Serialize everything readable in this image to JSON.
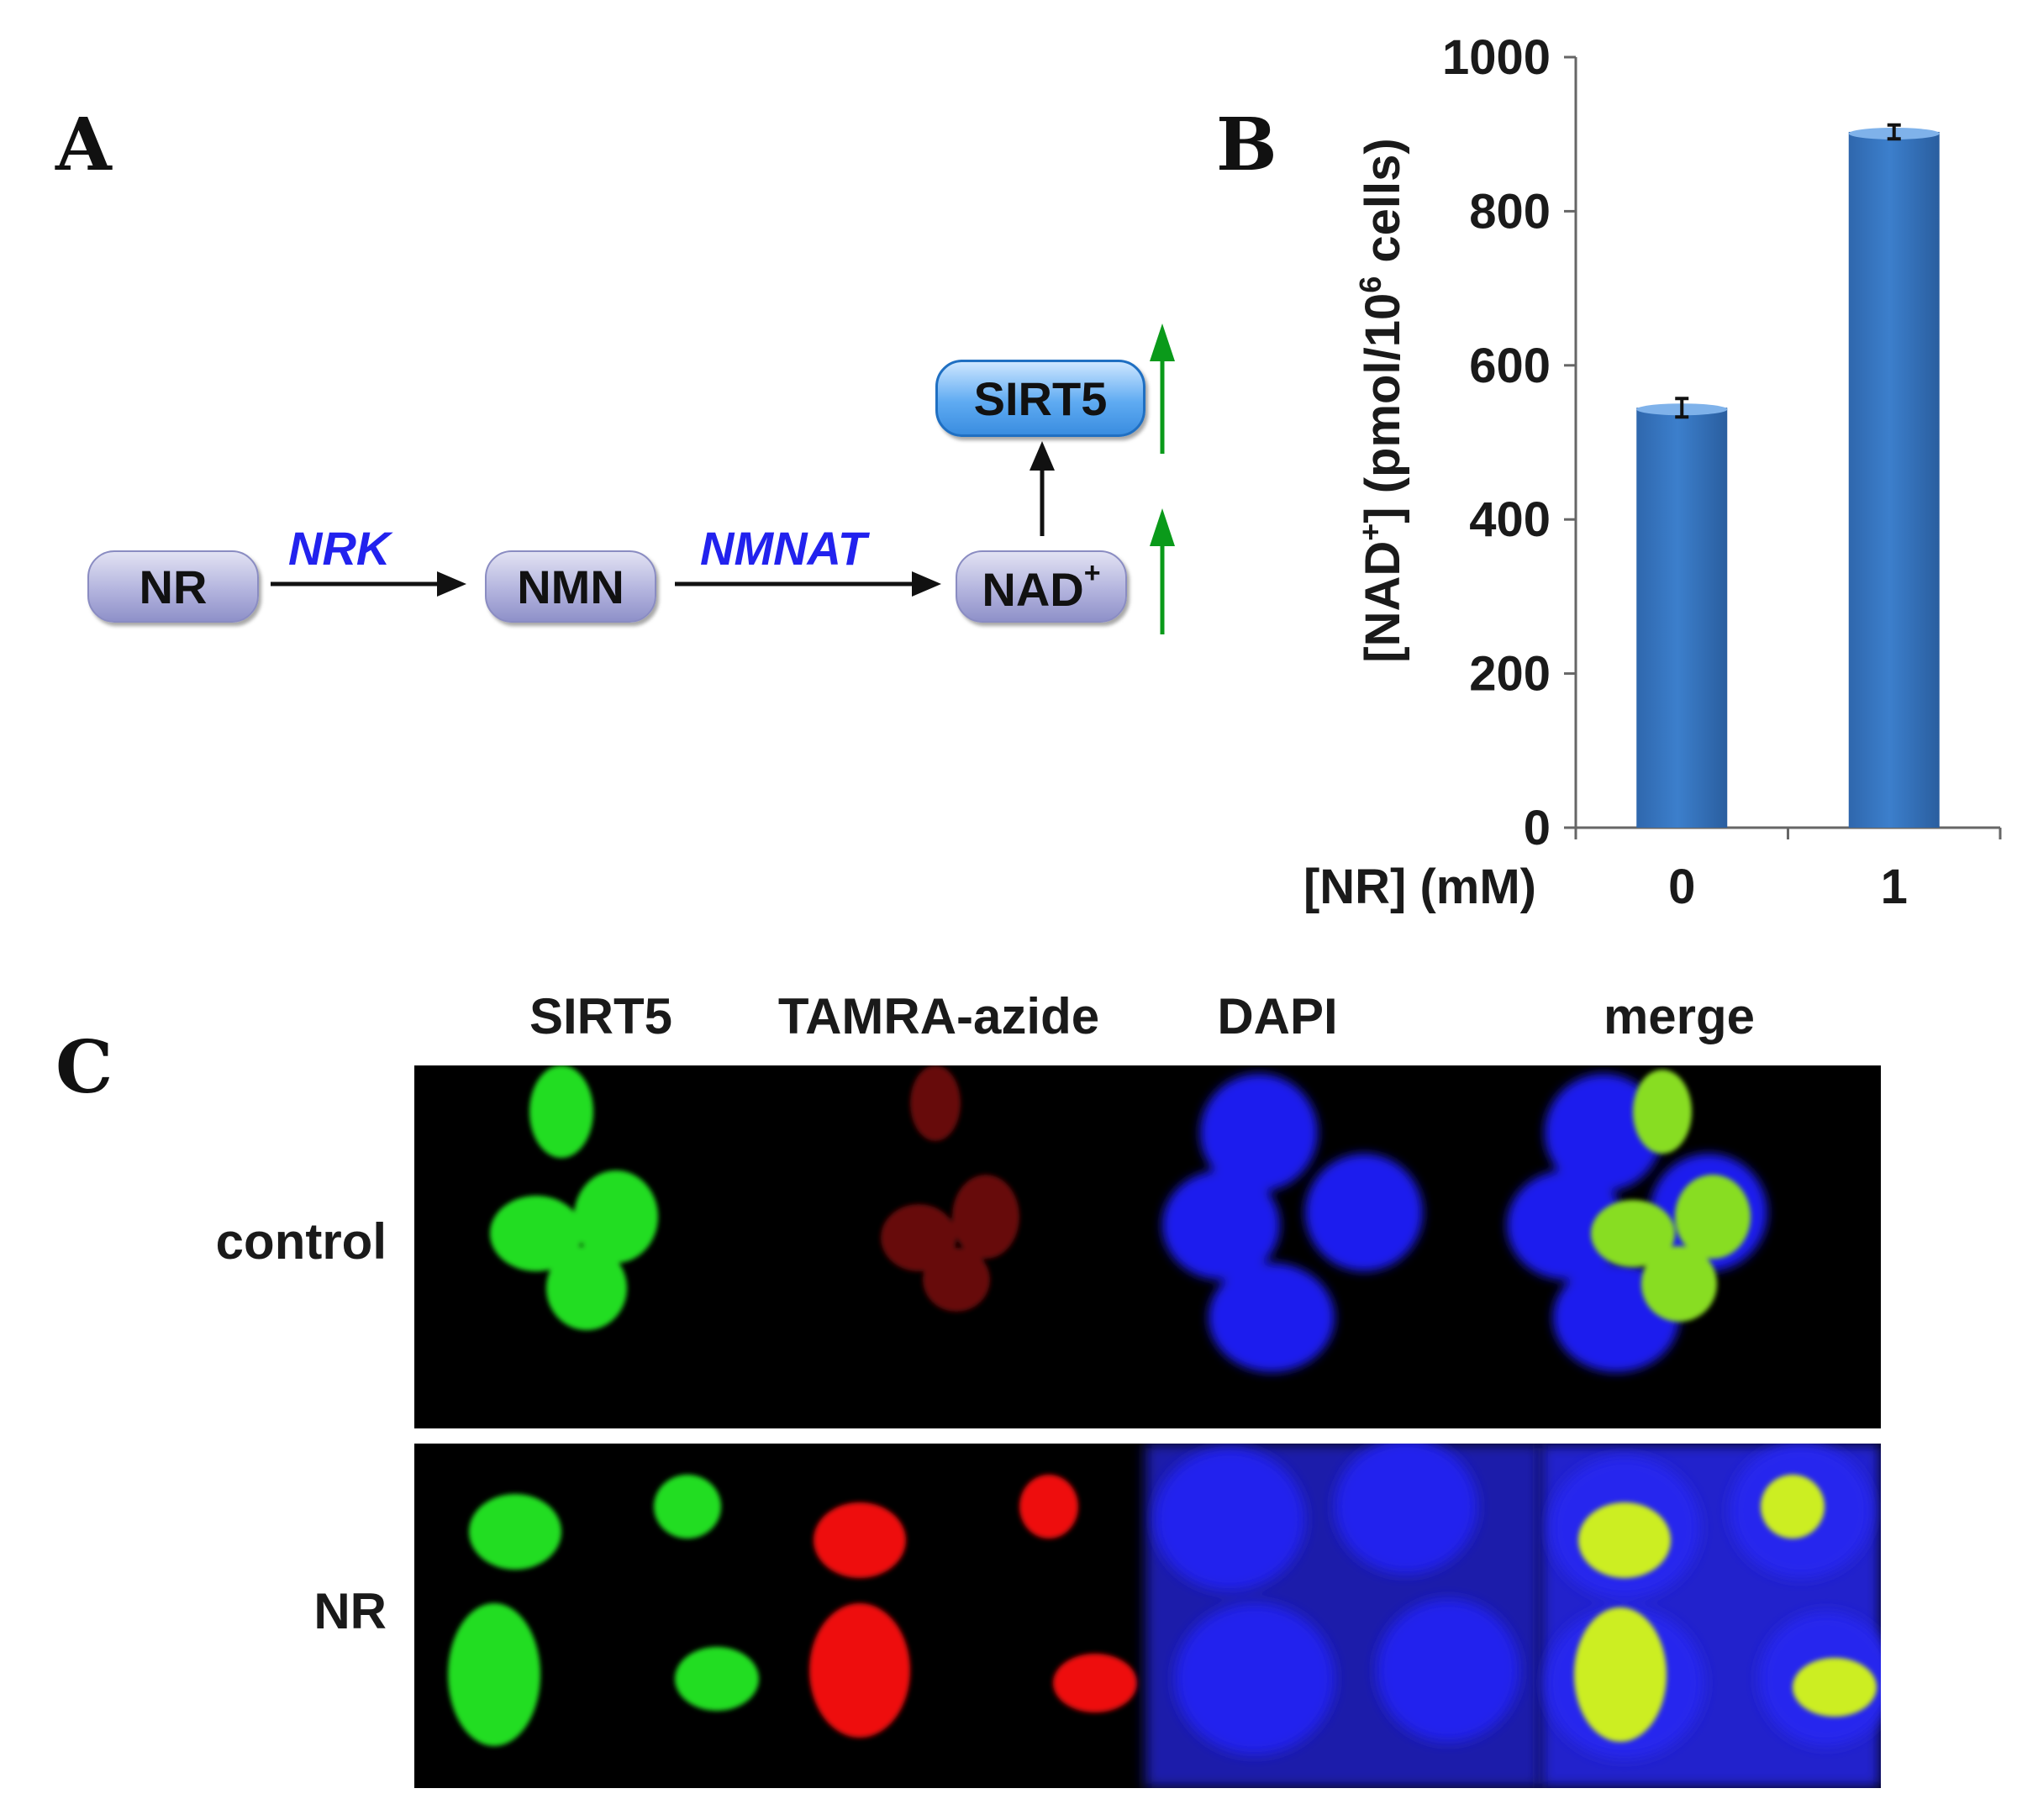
{
  "panel_labels": {
    "a": "A",
    "b": "B",
    "c": "C"
  },
  "pathway": {
    "nodes": {
      "nr": "NR",
      "nmn": "NMN",
      "nad_base": "NAD",
      "nad_sup": "+",
      "sirt5": "SIRT5"
    },
    "enzymes": {
      "nrk": "NRK",
      "nmnat": "NMNAT"
    },
    "colors": {
      "enzyme_text": "#2222ee",
      "increase_arrow": "#0a9a1a",
      "node_fill": "#b3b4de",
      "sirt5_fill": "#5fabf2"
    },
    "icons": [
      "right-arrow-icon",
      "up-arrow-icon",
      "green-increase-arrow-icon"
    ]
  },
  "chart_data": {
    "type": "bar",
    "categories": [
      "0",
      "1"
    ],
    "values": [
      545,
      903
    ],
    "errors": [
      12,
      9
    ],
    "ylim": [
      0,
      1000
    ],
    "yticks": [
      "0",
      "200",
      "400",
      "600",
      "800",
      "1000"
    ],
    "ylabel_parts": {
      "a": "[NAD",
      "sup": "+",
      "b": "] (pmol/10",
      "sup2": "6",
      "c": " cells)"
    },
    "xlabel": "[NR] (mM)",
    "bar_color": "#3c7fcc",
    "grid": false
  },
  "micrographs": {
    "columns": [
      "SIRT5",
      "TAMRA-azide",
      "DAPI",
      "merge"
    ],
    "rows": [
      "control",
      "NR"
    ],
    "channel_colors": {
      "sirt5": "#22dd22",
      "tamra": "#dd1111",
      "dapi": "#1a1aee",
      "merge": "#ccee22"
    }
  }
}
